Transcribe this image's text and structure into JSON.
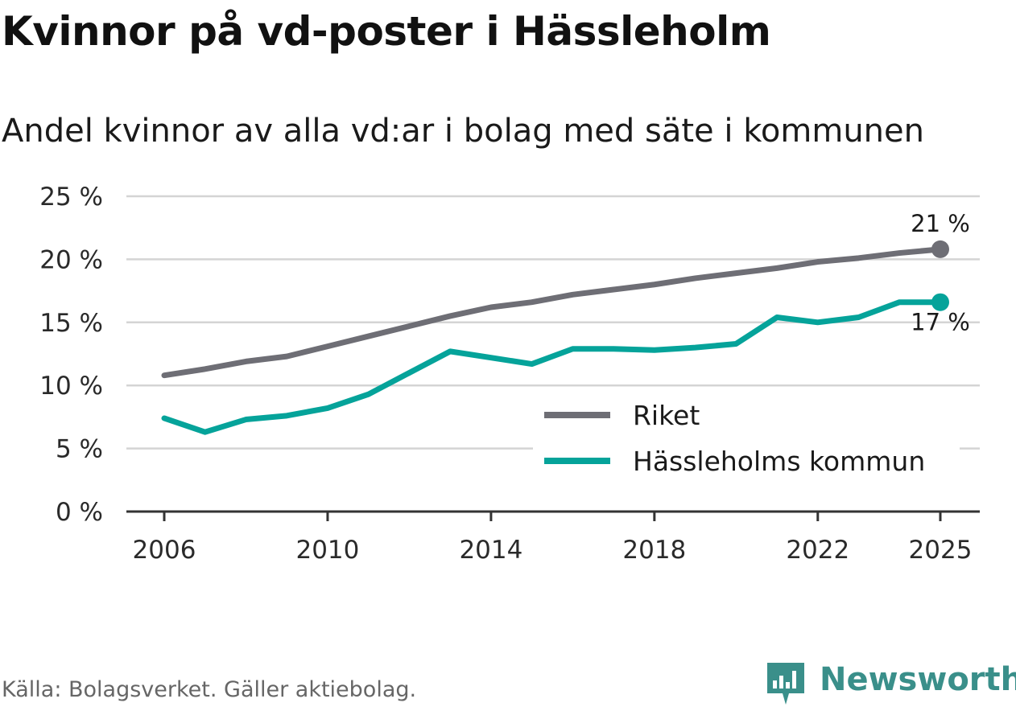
{
  "title": "Kvinnor på vd-poster i Hässleholm",
  "subtitle": "Andel kvinnor av alla vd:ar i bolag med säte i kommunen",
  "source": "Källa: Bolagsverket. Gäller aktiebolag.",
  "brand": "Newsworthy",
  "colors": {
    "riket": "#6e6e75",
    "kommun": "#05a39a",
    "grid": "#d4d4d4",
    "axis": "#333333"
  },
  "chart_data": {
    "type": "line",
    "title": "Kvinnor på vd-poster i Hässleholm",
    "subtitle": "Andel kvinnor av alla vd:ar i bolag med säte i kommunen",
    "xlabel": "",
    "ylabel": "",
    "x": [
      2006,
      2007,
      2008,
      2009,
      2010,
      2011,
      2012,
      2013,
      2014,
      2015,
      2016,
      2017,
      2018,
      2019,
      2020,
      2021,
      2022,
      2023,
      2024,
      2025
    ],
    "xlim": [
      2006,
      2025
    ],
    "ylim": [
      0,
      25
    ],
    "x_ticks": [
      2006,
      2010,
      2014,
      2018,
      2022,
      2025
    ],
    "y_ticks": [
      0,
      5,
      10,
      15,
      20,
      25
    ],
    "x_tick_labels": [
      "2006",
      "2010",
      "2014",
      "2018",
      "2022",
      "2025"
    ],
    "y_tick_labels": [
      "0 %",
      "5 %",
      "10 %",
      "15 %",
      "20 %",
      "25 %"
    ],
    "grid": true,
    "legend_position": "center-right",
    "series": [
      {
        "name": "Riket",
        "color": "#6e6e75",
        "values": [
          10.8,
          11.3,
          11.9,
          12.3,
          13.1,
          13.9,
          14.7,
          15.5,
          16.2,
          16.6,
          17.2,
          17.6,
          18.0,
          18.5,
          18.9,
          19.3,
          19.8,
          20.1,
          20.5,
          20.8
        ],
        "end_label": "21 %"
      },
      {
        "name": "Hässleholms kommun",
        "color": "#05a39a",
        "values": [
          7.4,
          6.3,
          7.3,
          7.6,
          8.2,
          9.3,
          11.0,
          12.7,
          12.2,
          11.7,
          12.9,
          12.9,
          12.8,
          13.0,
          13.3,
          15.4,
          15.0,
          15.4,
          16.6,
          16.6
        ],
        "end_label": "17 %"
      }
    ]
  }
}
